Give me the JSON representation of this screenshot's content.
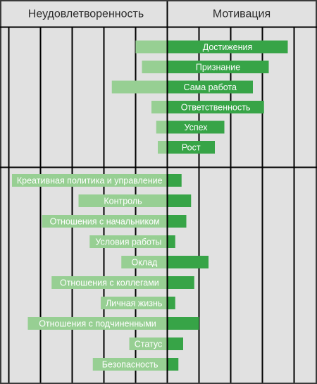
{
  "chart_data": {
    "type": "bar",
    "layout": "diverging-horizontal",
    "headers": {
      "left": "Неудовлетворенность",
      "right": "Мотивация"
    },
    "grid": true,
    "colors": {
      "background": "#e1e1e1",
      "dissatisfaction": "#97cf93",
      "motivation": "#37a447",
      "grid": "#000000"
    },
    "groups": [
      {
        "name": "motivators",
        "rows": [
          {
            "label": "Достижения",
            "dissatisfaction": 10,
            "motivation": 38
          },
          {
            "label": "Признание",
            "dissatisfaction": 8,
            "motivation": 32
          },
          {
            "label": "Сама работа",
            "dissatisfaction": 17.5,
            "motivation": 27
          },
          {
            "label": "Ответственность",
            "dissatisfaction": 5,
            "motivation": 30.5
          },
          {
            "label": "Успех",
            "dissatisfaction": 3.5,
            "motivation": 18
          },
          {
            "label": "Рост",
            "dissatisfaction": 3,
            "motivation": 15
          }
        ]
      },
      {
        "name": "hygiene",
        "rows": [
          {
            "label": "Креативная политика и управление",
            "dissatisfaction": 49,
            "motivation": 4.5
          },
          {
            "label": "Контроль",
            "dissatisfaction": 28,
            "motivation": 7.5
          },
          {
            "label": "Отношения с начальником",
            "dissatisfaction": 39.5,
            "motivation": 6
          },
          {
            "label": "Условия работы",
            "dissatisfaction": 24.5,
            "motivation": 2.5
          },
          {
            "label": "Оклад",
            "dissatisfaction": 14.5,
            "motivation": 13
          },
          {
            "label": "Отношения с коллегами",
            "dissatisfaction": 36.5,
            "motivation": 8.5
          },
          {
            "label": "Личная жизнь",
            "dissatisfaction": 21,
            "motivation": 2.5
          },
          {
            "label": "Отношения с подчиненными",
            "dissatisfaction": 44,
            "motivation": 10
          },
          {
            "label": "Статус",
            "dissatisfaction": 12,
            "motivation": 5
          },
          {
            "label": "Безопасность",
            "dissatisfaction": 23.5,
            "motivation": 3.5
          }
        ]
      }
    ]
  }
}
